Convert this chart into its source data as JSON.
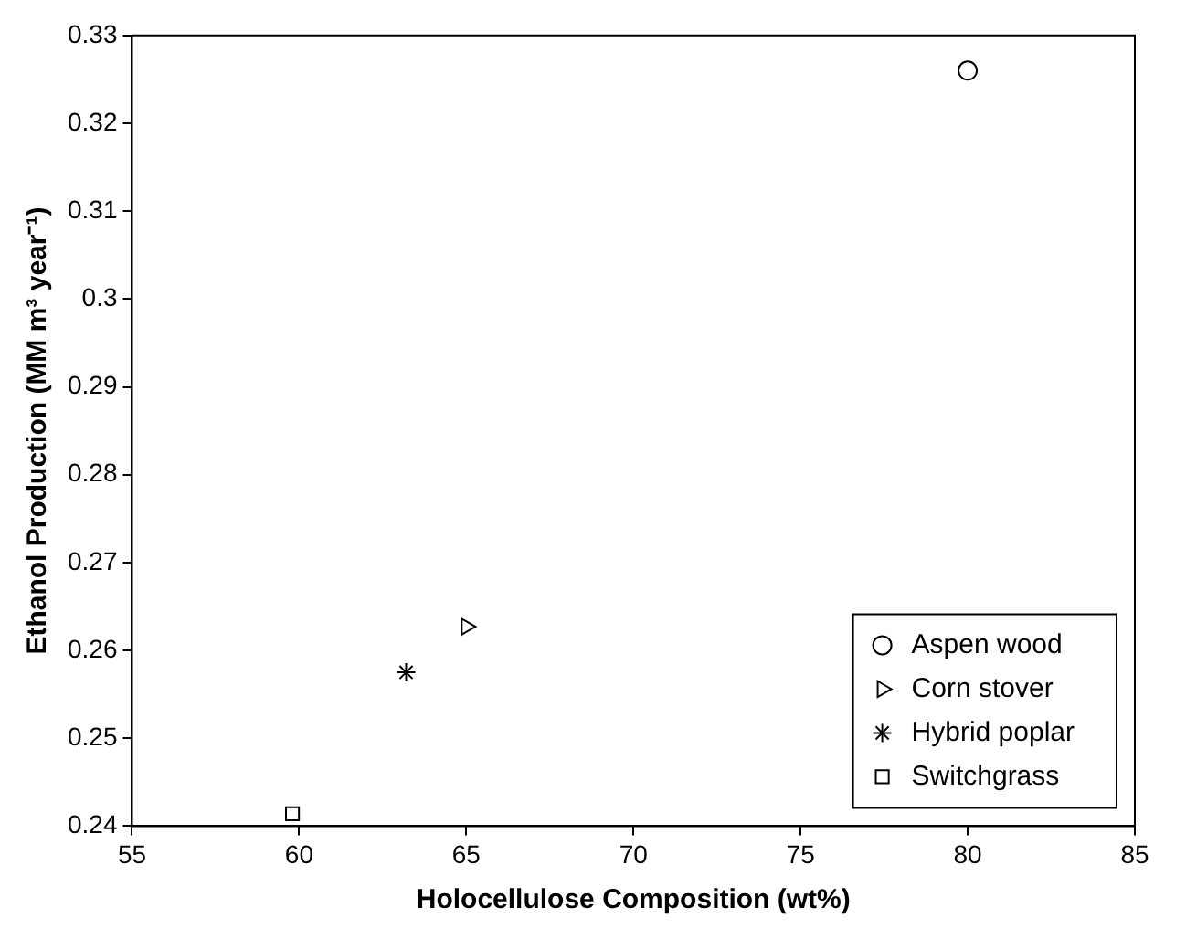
{
  "chart_data": {
    "type": "scatter",
    "xlabel": "Holocellulose Composition (wt%)",
    "ylabel": "Ethanol Production (MM m³ year⁻¹)",
    "xlim": [
      55,
      85
    ],
    "xticks": [
      55,
      60,
      65,
      70,
      75,
      80,
      85
    ],
    "ylim": [
      0.24,
      0.33
    ],
    "yticks": [
      0.24,
      0.25,
      0.26,
      0.27,
      0.28,
      0.29,
      0.3,
      0.31,
      0.32,
      0.33
    ],
    "grid": false,
    "legend": "bottom right",
    "series": [
      {
        "name": "Aspen wood",
        "color": "#000000",
        "marker": "circle",
        "x": [
          80
        ],
        "values": [
          0.326
        ]
      },
      {
        "name": "Corn stover",
        "color": "#000000",
        "marker": "triangle",
        "x": [
          65
        ],
        "values": [
          0.2627
        ]
      },
      {
        "name": "Hybrid poplar",
        "color": "#000000",
        "marker": "cross",
        "x": [
          63.2
        ],
        "values": [
          0.2575
        ]
      },
      {
        "name": "Switchgrass",
        "color": "#000000",
        "marker": "square",
        "x": [
          59.8
        ],
        "values": [
          0.2414
        ]
      }
    ]
  }
}
